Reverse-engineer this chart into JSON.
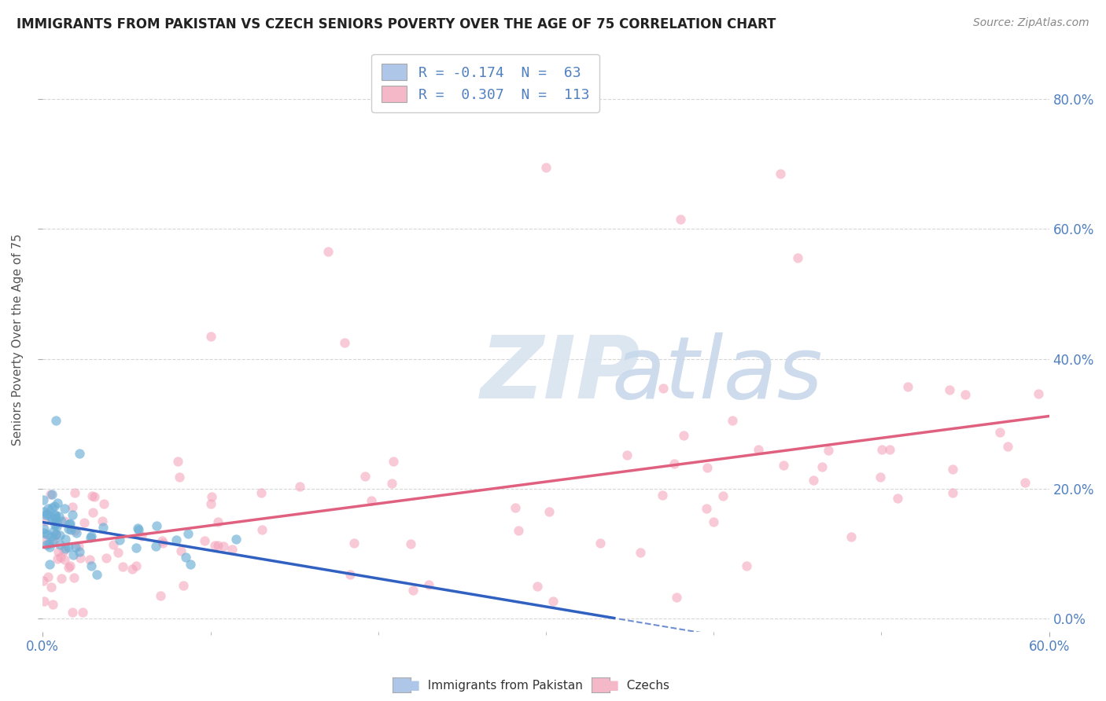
{
  "title": "IMMIGRANTS FROM PAKISTAN VS CZECH SENIORS POVERTY OVER THE AGE OF 75 CORRELATION CHART",
  "source": "Source: ZipAtlas.com",
  "ylabel": "Seniors Poverty Over the Age of 75",
  "legend1_label": "R = -0.174  N =  63",
  "legend2_label": "R =  0.307  N =  113",
  "legend1_color": "#aec6e8",
  "legend2_color": "#f4b8c8",
  "scatter1_color": "#6baed6",
  "scatter2_color": "#f4a0b8",
  "line1_color": "#3060c0",
  "line2_color": "#e06080",
  "xlim": [
    0.0,
    0.6
  ],
  "ylim": [
    -0.02,
    0.88
  ],
  "y_tick_vals": [
    0.0,
    0.2,
    0.4,
    0.6,
    0.8
  ],
  "background_color": "#ffffff",
  "grid_color": "#cccccc",
  "tick_color": "#5080c0",
  "watermark_color": "#d8e4f0"
}
